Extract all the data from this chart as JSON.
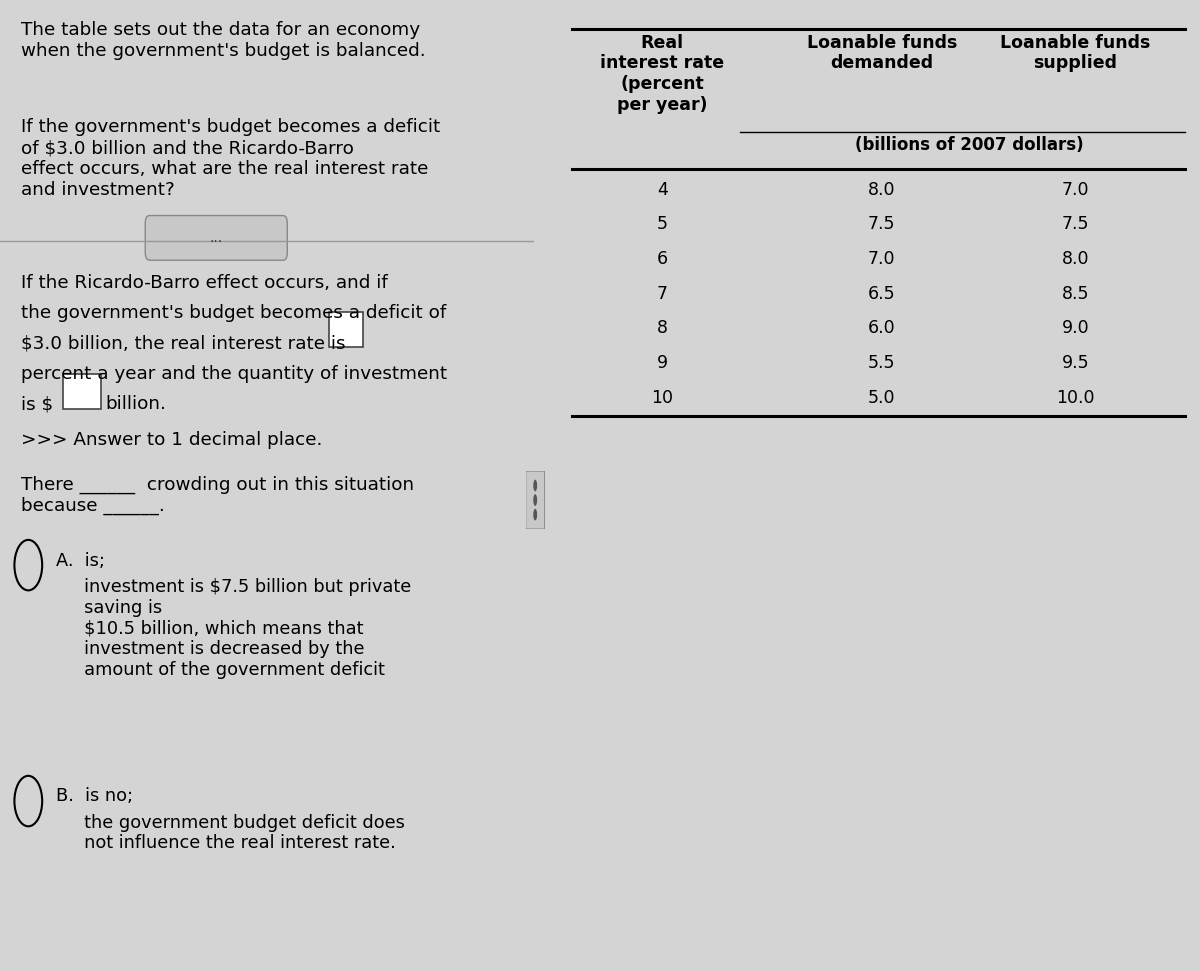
{
  "bg_color": "#d4d4d4",
  "left_panel_bg": "#d4d4d4",
  "right_panel_bg": "#e0e0e0",
  "table_data": [
    [
      4,
      8.0,
      7.0
    ],
    [
      5,
      7.5,
      7.5
    ],
    [
      6,
      7.0,
      8.0
    ],
    [
      7,
      6.5,
      8.5
    ],
    [
      8,
      6.0,
      9.0
    ],
    [
      9,
      5.5,
      9.5
    ],
    [
      10,
      5.0,
      10.0
    ]
  ],
  "col1_header": "Real\ninterest rate\n(percent\nper year)",
  "col2_header": "Loanable funds\ndemanded",
  "col3_header": "Loanable funds\nsupplied",
  "subheader": "(billions of 2007 dollars)",
  "text1": "The table sets out the data for an economy\nwhen the government's budget is balanced.",
  "text2": "If the government's budget becomes a deficit\nof $3.0 billion and the Ricardo-Barro\neffect occurs, what are the real interest rate\nand investment?",
  "text3a": "If the Ricardo-Barro effect occurs, and if",
  "text3b": "the government's budget becomes a deficit of",
  "text3c": "$3.0 billion, the real interest rate is",
  "text3d": "percent a year and the quantity of investment",
  "text3e": "is $",
  "text3f": "billion.",
  "text4": ">>> Answer to 1 decimal place.",
  "text5": "There ______  crowding out in this situation\nbecause ______.",
  "textA": "A.  is;",
  "textA2": "     investment is $7.5 billion but private\n     saving is\n     $10.5 billion, which means that\n     investment is decreased by the\n     amount of the government deficit",
  "textB": "B.  is no;",
  "textB2": "     the government budget deficit does\n     not influence the real interest rate.",
  "fontsize_main": 13.2,
  "fontsize_table": 12.5,
  "fontsize_options": 12.8
}
